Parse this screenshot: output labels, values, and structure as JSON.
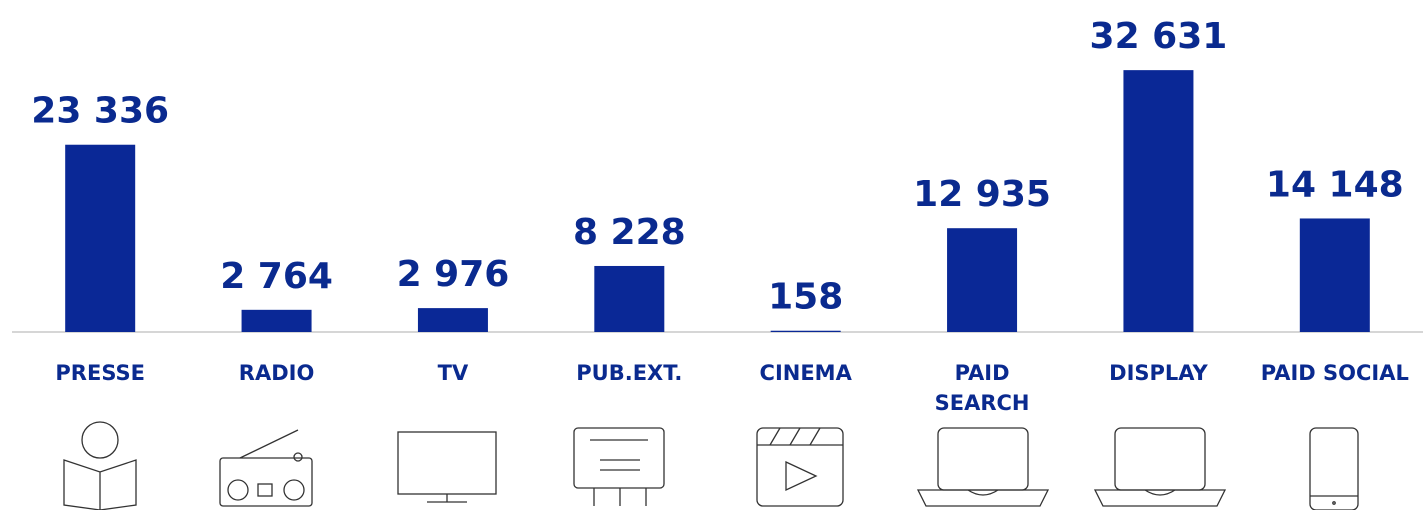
{
  "chart_data": {
    "type": "bar",
    "categories": [
      "PRESSE",
      "RADIO",
      "TV",
      "PUB.EXT.",
      "CINEMA",
      "PAID\nSEARCH",
      "DISPLAY",
      "PAID SOCIAL"
    ],
    "values": [
      23336,
      2764,
      2976,
      8228,
      158,
      12935,
      32631,
      14148
    ],
    "value_labels": [
      "23 336",
      "2 764",
      "2 976",
      "8 228",
      "158",
      "12 935",
      "32 631",
      "14 148"
    ],
    "color": "#0a2896",
    "ylim": [
      0,
      40000
    ]
  }
}
